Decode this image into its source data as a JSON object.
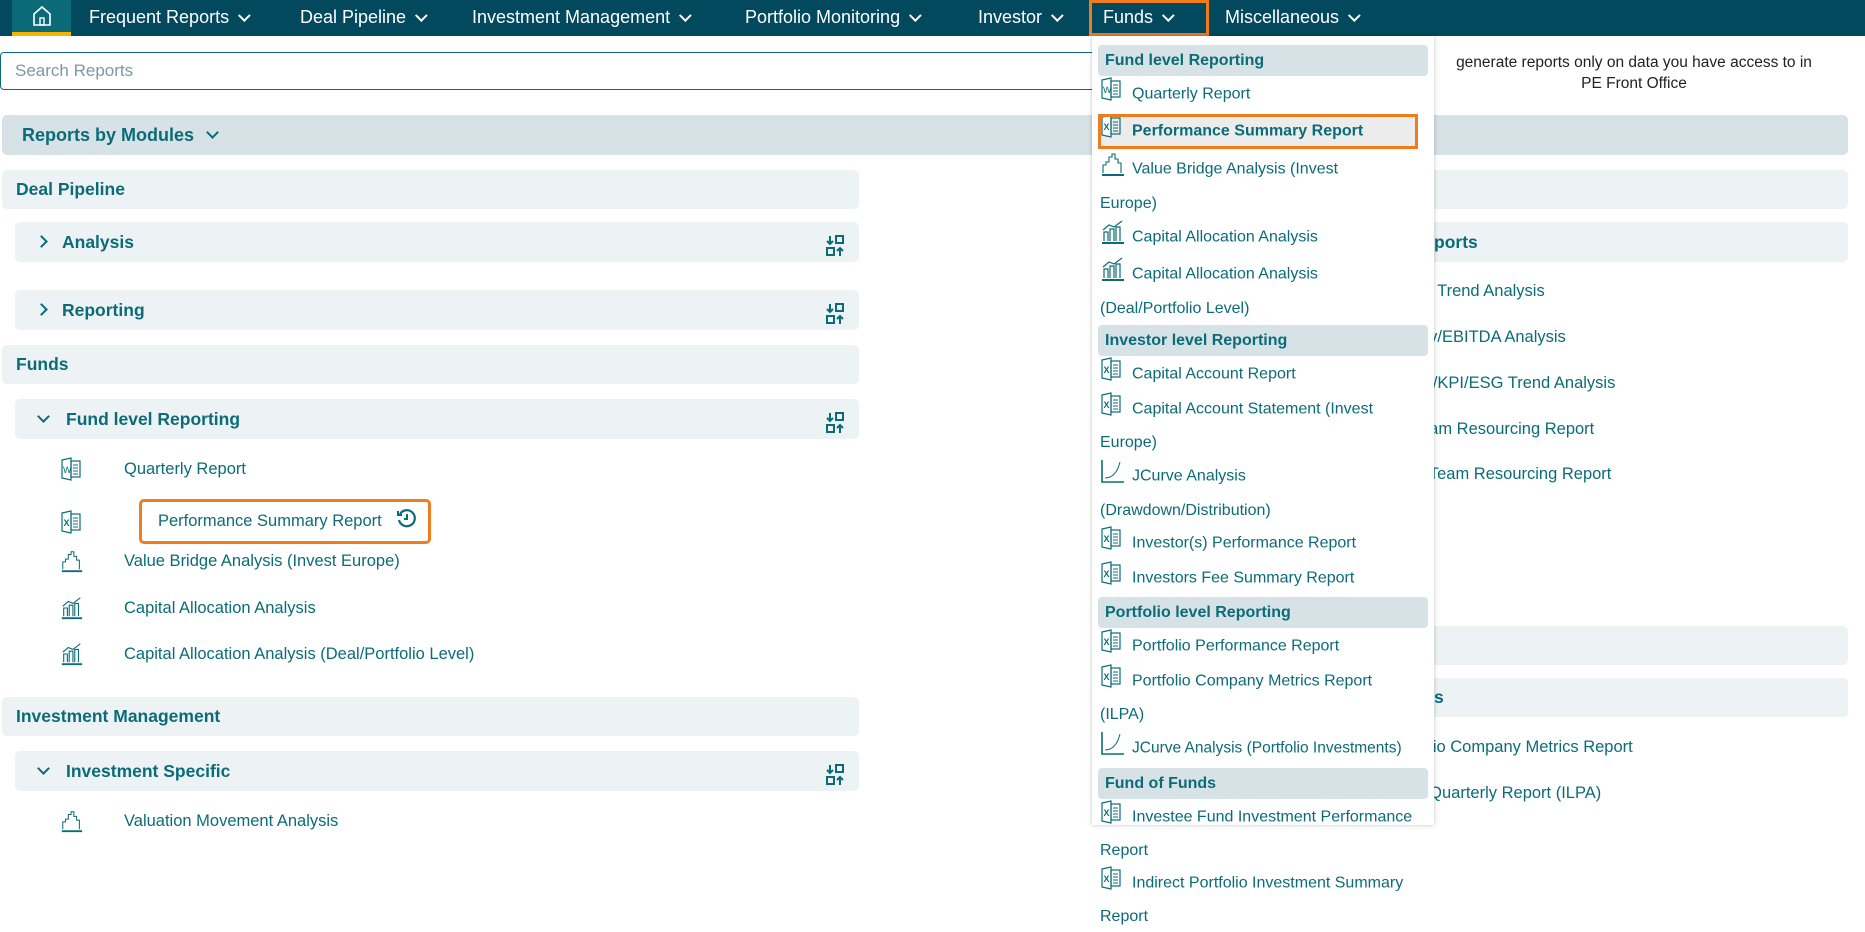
{
  "nav": {
    "home_icon": "home-icon",
    "items": [
      "Frequent Reports",
      "Deal Pipeline",
      "Investment Management",
      "Portfolio Monitoring",
      "Investor",
      "Funds",
      "Miscellaneous"
    ],
    "active": "Funds"
  },
  "search": {
    "placeholder": "Search Reports"
  },
  "note": {
    "line1": "generate reports only on data you have access to in",
    "line2": "PE Front Office"
  },
  "modules": {
    "label": "Reports by Modules"
  },
  "left": {
    "deal_pipeline": {
      "title": "Deal Pipeline",
      "analysis": "Analysis",
      "reporting": "Reporting"
    },
    "funds": {
      "title": "Funds",
      "fund_level": "Fund level Reporting",
      "items": [
        {
          "label": "Quarterly Report",
          "icon": "word-doc-icon"
        },
        {
          "label": "Performance Summary Report",
          "icon": "excel-doc-icon",
          "history_icon": "history-icon"
        },
        {
          "label": "Value Bridge Analysis (Invest Europe)",
          "icon": "value-bridge-icon"
        },
        {
          "label": "Capital Allocation Analysis",
          "icon": "bar-chart-icon"
        },
        {
          "label": "Capital Allocation Analysis (Deal/Portfolio Level)",
          "icon": "bar-chart-icon"
        }
      ]
    },
    "investment_management": {
      "title": "Investment Management",
      "investment_specific": "Investment Specific",
      "items": [
        {
          "label": "Valuation Movement Analysis",
          "icon": "value-bridge-icon"
        }
      ]
    }
  },
  "right": {
    "section2": "ports",
    "items1": [
      "G Trend Analysis",
      "ev/EBITDA Analysis",
      "in/KPI/ESG Trend Analysis",
      "eam Resourcing Report",
      "t Team Resourcing Report"
    ],
    "section4": "s",
    "items2": [
      "olio Company Metrics Report",
      "t Quarterly Report (ILPA)"
    ]
  },
  "dropdown": {
    "fund_level": {
      "title": "Fund level Reporting",
      "items": [
        "Quarterly Report",
        "Performance Summary Report",
        "Value Bridge Analysis (Invest Europe)",
        "Capital Allocation Analysis",
        "Capital Allocation Analysis (Deal/Portfolio Level)"
      ]
    },
    "investor_level": {
      "title": "Investor level Reporting",
      "items": [
        "Capital Account Report",
        "Capital Account Statement (Invest Europe)",
        "JCurve Analysis (Drawdown/Distribution)",
        "Investor(s) Performance Report",
        "Investors Fee Summary Report"
      ]
    },
    "portfolio_level": {
      "title": "Portfolio level Reporting",
      "items": [
        "Portfolio Performance Report",
        "Portfolio Company Metrics Report (ILPA)",
        "JCurve Analysis (Portfolio Investments)"
      ]
    },
    "fund_of_funds": {
      "title": "Fund of Funds",
      "items": [
        "Investee Fund Investment Performance Report",
        "Indirect Portfolio Investment Summary Report"
      ]
    }
  },
  "colors": {
    "nav": "#03495e",
    "text": "#0b6c78",
    "highlight": "#f07c1e",
    "header_bg": "#d6e2e6",
    "panel_bg": "#edf2f4"
  }
}
